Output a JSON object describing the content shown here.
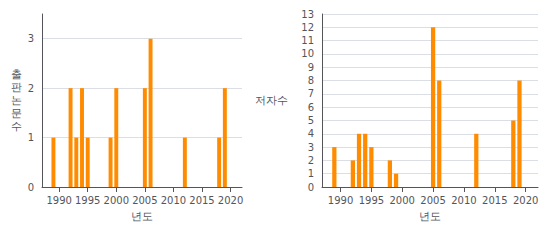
{
  "chart_data": [
    {
      "type": "bar",
      "x": [
        1989,
        1992,
        1993,
        1994,
        1995,
        1999,
        2000,
        2005,
        2006,
        2012,
        2018,
        2019
      ],
      "values": [
        1,
        2,
        1,
        2,
        1,
        1,
        2,
        2,
        3,
        1,
        1,
        2
      ],
      "color": "#FF8C00",
      "xlabel": "년도",
      "ylabel": "출\n판\n논\n문\n수",
      "xlim": [
        1987,
        2022
      ],
      "xticks": [
        1990,
        1995,
        2000,
        2005,
        2010,
        2015,
        2020
      ],
      "ylim": [
        0,
        3.5
      ],
      "yticks": [
        0,
        1,
        2,
        3
      ],
      "grid": true
    },
    {
      "type": "bar",
      "x": [
        1989,
        1992,
        1993,
        1994,
        1995,
        1998,
        1999,
        2005,
        2006,
        2012,
        2018,
        2019
      ],
      "values": [
        3,
        2,
        4,
        4,
        3,
        2,
        1,
        12,
        8,
        4,
        5,
        8
      ],
      "color": "#FF8C00",
      "xlabel": "년도",
      "ylabel": "저자수",
      "xlim": [
        1987,
        2022
      ],
      "xticks": [
        1990,
        1995,
        2000,
        2005,
        2010,
        2015,
        2020
      ],
      "ylim": [
        0,
        13
      ],
      "yticks": [
        0,
        1,
        2,
        3,
        4,
        5,
        6,
        7,
        8,
        9,
        10,
        11,
        12,
        13
      ],
      "grid": true
    }
  ]
}
